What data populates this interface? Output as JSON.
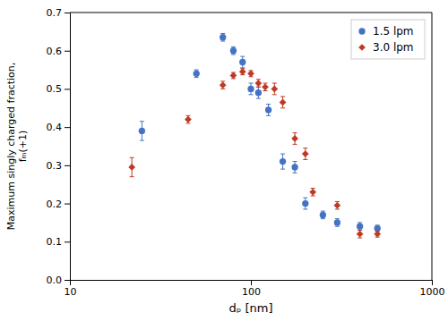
{
  "chart_data": {
    "type": "scatter",
    "xlabel": "dₚ [nm]",
    "ylabel": "Maximum singly charged fraction,\nfₘ(+1)",
    "log": "x",
    "xlim": [
      10,
      1000
    ],
    "xticks": [
      10,
      100,
      1000
    ],
    "ylim": [
      0.0,
      0.7
    ],
    "yticks": [
      {
        "value": 0.0,
        "label": "0.0"
      },
      0.1,
      0.2,
      0.3,
      0.4,
      0.5,
      0.6,
      0.7
    ],
    "grid": false,
    "legend": "upper right",
    "series": [
      {
        "name": "1.5 lpm",
        "color": "#4472C4",
        "marker": "circle",
        "x": [
          25,
          50,
          70,
          80,
          90,
          100,
          110,
          125,
          150,
          175,
          200,
          250,
          300,
          400,
          500
        ],
        "values": [
          0.39,
          0.54,
          0.635,
          0.6,
          0.57,
          0.5,
          0.49,
          0.445,
          0.31,
          0.295,
          0.2,
          0.17,
          0.15,
          0.14,
          0.135
        ],
        "errors": [
          0.025,
          0.01,
          0.01,
          0.01,
          0.015,
          0.015,
          0.015,
          0.015,
          0.02,
          0.015,
          0.015,
          0.01,
          0.01,
          0.01,
          0.008
        ]
      },
      {
        "name": "3.0 lpm",
        "color": "#BE3A23",
        "marker": "diamond",
        "x": [
          22,
          45,
          70,
          80,
          90,
          100,
          110,
          120,
          135,
          150,
          175,
          200,
          220,
          300,
          400,
          500
        ],
        "values": [
          0.295,
          0.42,
          0.51,
          0.535,
          0.545,
          0.54,
          0.515,
          0.505,
          0.5,
          0.465,
          0.37,
          0.33,
          0.23,
          0.195,
          0.12,
          0.12
        ],
        "errors": [
          0.025,
          0.01,
          0.01,
          0.008,
          0.008,
          0.008,
          0.01,
          0.01,
          0.015,
          0.015,
          0.015,
          0.015,
          0.01,
          0.01,
          0.01,
          0.008
        ]
      }
    ]
  }
}
